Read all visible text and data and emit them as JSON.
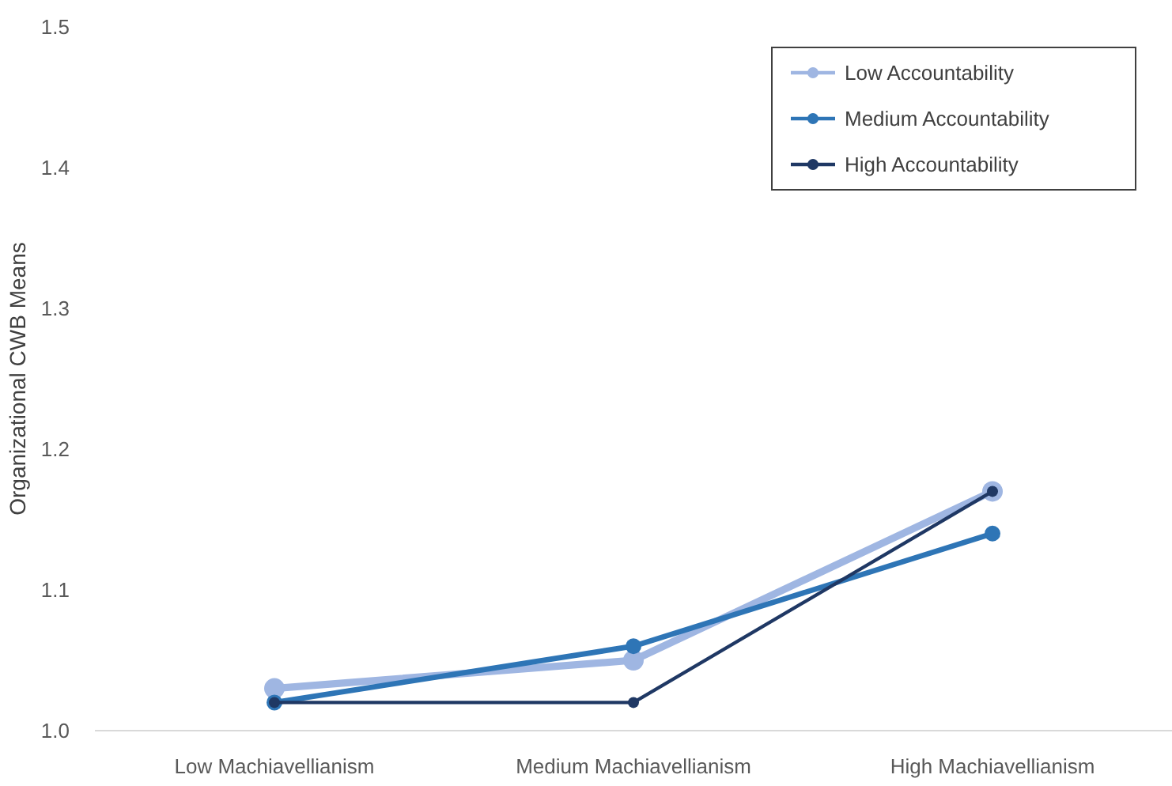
{
  "chart_data": {
    "type": "line",
    "ylabel": "Organizational CWB Means",
    "categories": [
      "Low Machiavellianism",
      "Medium Machiavellianism",
      "High Machiavellianism"
    ],
    "series": [
      {
        "name": "Low Accountability",
        "color": "#9fb6e2",
        "values": [
          1.03,
          1.05,
          1.17
        ]
      },
      {
        "name": "Medium Accountability",
        "color": "#2e75b6",
        "values": [
          1.02,
          1.06,
          1.14
        ]
      },
      {
        "name": "High Accountability",
        "color": "#1f3864",
        "values": [
          1.02,
          1.02,
          1.17
        ]
      }
    ],
    "ylim": [
      1.0,
      1.5
    ],
    "yticks": [
      {
        "value": 1.0,
        "label": "1.0"
      },
      1.1,
      1.2,
      1.3,
      1.4,
      1.5
    ],
    "grid": false,
    "legend": "top right",
    "marker": "circle",
    "line_style": "solid"
  }
}
